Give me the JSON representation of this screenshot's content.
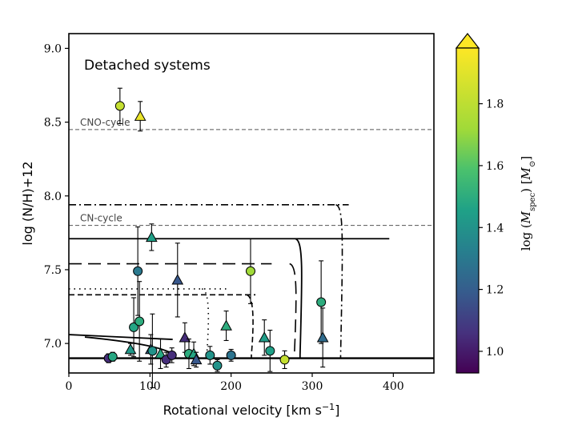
{
  "chart_data": {
    "type": "scatter",
    "title": "Detached systems",
    "xlabel": "Rotational velocity [km s",
    "xlabel_sup": "−1",
    "xlabel_end": "]",
    "ylabel": "log (N/H)+12",
    "xlim": [
      0,
      450
    ],
    "ylim": [
      6.8,
      9.1
    ],
    "xticks": [
      0,
      100,
      200,
      300,
      400
    ],
    "yticks": [
      7.0,
      7.5,
      8.0,
      8.5,
      9.0
    ],
    "ytick_labels": [
      "7.0",
      "7.5",
      "8.0",
      "8.5",
      "9.0"
    ],
    "reference_lines": [
      {
        "label": "CNO-cycle",
        "y": 8.45
      },
      {
        "label": "CN-cycle",
        "y": 7.8
      }
    ],
    "colorbar": {
      "label": "log (M_spec) [M_⊙]",
      "label_main": "log",
      "label_var": "M",
      "label_sub": "spec",
      "label_unit": "M",
      "label_unit_sub": "⊙",
      "range": [
        0.93,
        1.98
      ],
      "ticks": [
        1.0,
        1.2,
        1.4,
        1.6,
        1.8
      ],
      "tick_labels": [
        "1.0",
        "1.2",
        "1.4",
        "1.6",
        "1.8"
      ],
      "extend": "max"
    },
    "points": [
      {
        "x": 63,
        "y": 8.61,
        "err": 0.12,
        "c": 1.82,
        "marker": "circle"
      },
      {
        "x": 88,
        "y": 8.54,
        "err": 0.1,
        "c": 1.93,
        "marker": "triangle"
      },
      {
        "x": 102,
        "y": 7.72,
        "err": 0.09,
        "c": 1.45,
        "marker": "triangle"
      },
      {
        "x": 85,
        "y": 7.49,
        "err": 0.3,
        "c": 1.3,
        "marker": "circle"
      },
      {
        "x": 134,
        "y": 7.43,
        "err": 0.25,
        "c": 1.18,
        "marker": "triangle"
      },
      {
        "x": 224,
        "y": 7.49,
        "err": 0.22,
        "c": 1.72,
        "marker": "circle"
      },
      {
        "x": 311,
        "y": 7.28,
        "err": 0.28,
        "c": 1.5,
        "marker": "circle"
      },
      {
        "x": 313,
        "y": 7.04,
        "err": 0.2,
        "c": 1.25,
        "marker": "triangle"
      },
      {
        "x": 80,
        "y": 7.11,
        "err": 0.2,
        "c": 1.47,
        "marker": "circle"
      },
      {
        "x": 87,
        "y": 7.15,
        "err": 0.27,
        "c": 1.5,
        "marker": "circle"
      },
      {
        "x": 143,
        "y": 7.04,
        "err": 0.1,
        "c": 1.05,
        "marker": "triangle"
      },
      {
        "x": 194,
        "y": 7.12,
        "err": 0.1,
        "c": 1.5,
        "marker": "triangle"
      },
      {
        "x": 241,
        "y": 7.04,
        "err": 0.12,
        "c": 1.44,
        "marker": "triangle"
      },
      {
        "x": 49,
        "y": 6.9,
        "err": 0.03,
        "c": 1.05,
        "marker": "circle"
      },
      {
        "x": 54,
        "y": 6.91,
        "err": 0.03,
        "c": 1.48,
        "marker": "circle"
      },
      {
        "x": 76,
        "y": 6.96,
        "err": 0.04,
        "c": 1.42,
        "marker": "triangle"
      },
      {
        "x": 101,
        "y": 6.96,
        "err": 0.1,
        "c": 1.2,
        "marker": "triangle"
      },
      {
        "x": 103,
        "y": 6.95,
        "err": 0.25,
        "c": 1.4,
        "marker": "circle"
      },
      {
        "x": 113,
        "y": 6.93,
        "err": 0.1,
        "c": 1.48,
        "marker": "triangle"
      },
      {
        "x": 120,
        "y": 6.89,
        "err": 0.05,
        "c": 1.05,
        "marker": "circle"
      },
      {
        "x": 127,
        "y": 6.92,
        "err": 0.05,
        "c": 1.05,
        "marker": "circle"
      },
      {
        "x": 148,
        "y": 6.93,
        "err": 0.1,
        "c": 1.5,
        "marker": "circle"
      },
      {
        "x": 154,
        "y": 6.93,
        "err": 0.08,
        "c": 1.47,
        "marker": "triangle"
      },
      {
        "x": 157,
        "y": 6.89,
        "err": 0.05,
        "c": 1.18,
        "marker": "triangle"
      },
      {
        "x": 174,
        "y": 6.92,
        "err": 0.06,
        "c": 1.4,
        "marker": "circle"
      },
      {
        "x": 183,
        "y": 6.85,
        "err": 0.04,
        "c": 1.4,
        "marker": "circle"
      },
      {
        "x": 200,
        "y": 6.92,
        "err": 0.04,
        "c": 1.28,
        "marker": "circle"
      },
      {
        "x": 248,
        "y": 6.95,
        "err": 0.14,
        "c": 1.45,
        "marker": "circle"
      },
      {
        "x": 266,
        "y": 6.89,
        "err": 0.06,
        "c": 1.82,
        "marker": "circle"
      }
    ],
    "tracks": [
      {
        "style": "solid",
        "v_max": 395,
        "n_high": 7.71,
        "n_low": 6.9,
        "v_drop": 285
      },
      {
        "style": "solid",
        "v_max": 128,
        "n_high": 7.06,
        "n_low": 6.9,
        "v_drop": 118
      },
      {
        "style": "dashdot",
        "v_max": 345,
        "n_high": 7.94,
        "n_low": 6.9,
        "v_drop": 335
      },
      {
        "style": "longdash",
        "v_max": 250,
        "n_high": 7.54,
        "n_low": 6.9,
        "v_drop": 278
      },
      {
        "style": "dotted",
        "v_max": 195,
        "n_high": 7.37,
        "n_low": 6.9,
        "v_drop": 170
      },
      {
        "style": "dashed",
        "v_max": 230,
        "n_high": 7.33,
        "n_low": 6.9,
        "v_drop": 225
      }
    ]
  }
}
